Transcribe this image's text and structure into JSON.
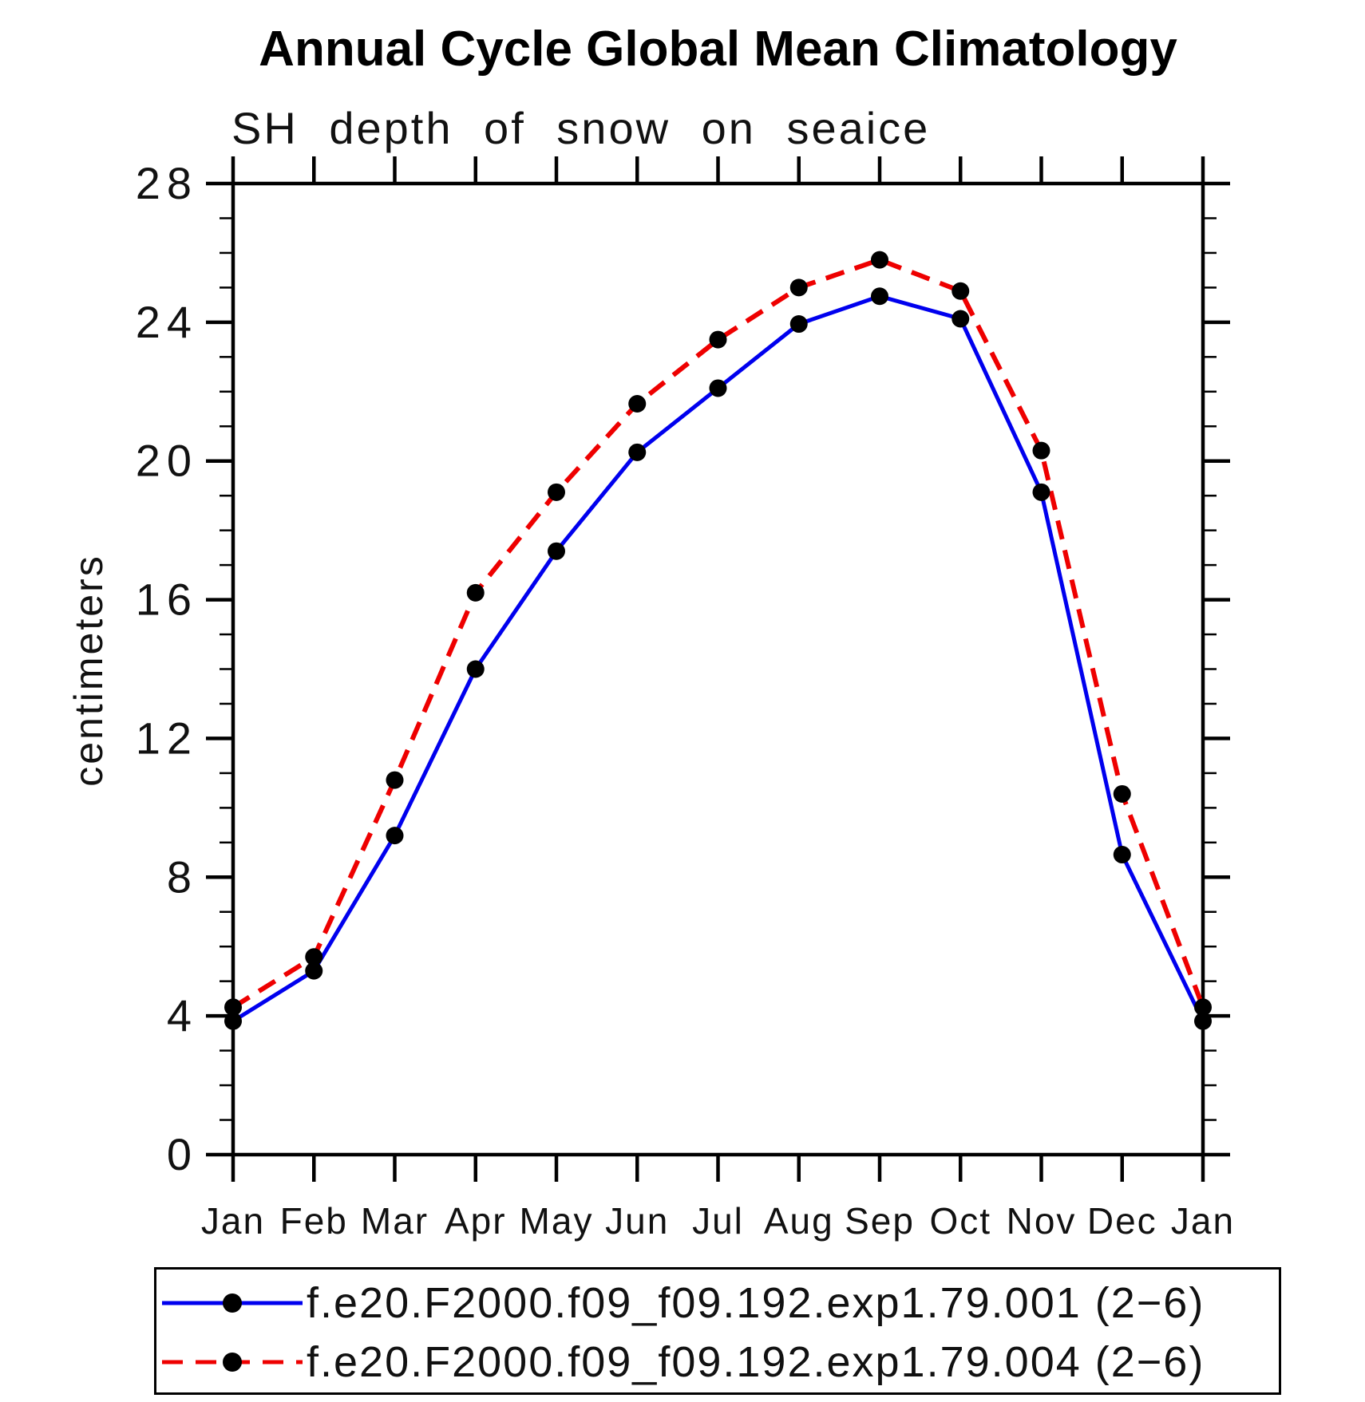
{
  "chart_data": {
    "type": "line",
    "title": "Annual Cycle Global Mean Climatology",
    "subtitle": "SH depth of snow on seaice",
    "ylabel": "centimeters",
    "xlabel": "",
    "categories": [
      "Jan",
      "Feb",
      "Mar",
      "Apr",
      "May",
      "Jun",
      "Jul",
      "Aug",
      "Sep",
      "Oct",
      "Nov",
      "Dec",
      "Jan"
    ],
    "ylim": [
      0,
      28
    ],
    "ytick_major": 4,
    "ytick_minor": 1,
    "ytick_labels": [
      "0",
      "4",
      "8",
      "12",
      "16",
      "20",
      "24",
      "28"
    ],
    "grid": false,
    "legend_position": "bottom",
    "series": [
      {
        "name": "f.e20.F2000.f09_f09.192.exp1.79.001 (2−6)",
        "color": "#0000ee",
        "line_style": "solid",
        "marker": "filled-circle",
        "marker_color": "#000000",
        "values": [
          3.85,
          5.3,
          9.2,
          14.0,
          17.4,
          20.25,
          22.1,
          23.95,
          24.75,
          24.1,
          19.1,
          8.65,
          3.85
        ]
      },
      {
        "name": "f.e20.F2000.f09_f09.192.exp1.79.004 (2−6)",
        "color": "#ee0000",
        "line_style": "dashed",
        "marker": "filled-circle",
        "marker_color": "#000000",
        "values": [
          4.25,
          5.7,
          10.8,
          16.2,
          19.1,
          21.65,
          23.5,
          25.0,
          25.8,
          24.9,
          20.3,
          10.4,
          4.25
        ]
      }
    ]
  }
}
